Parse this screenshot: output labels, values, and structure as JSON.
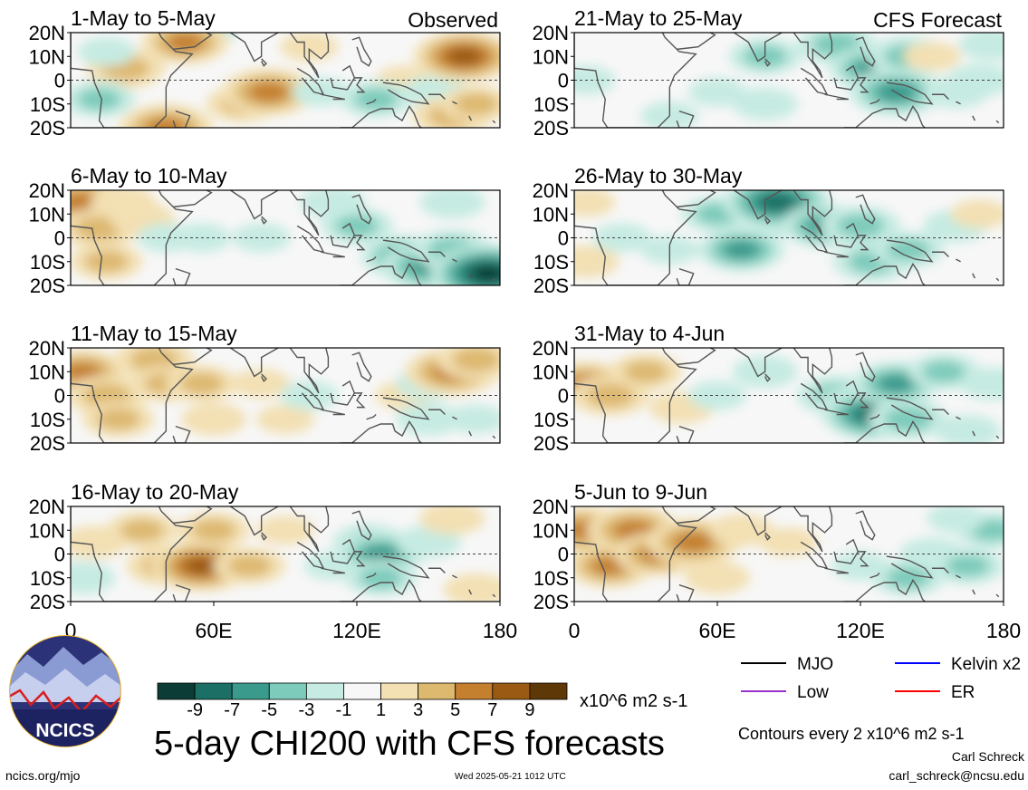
{
  "chart_data": {
    "type": "heatmap",
    "variable_title": "5-day CHI200 with CFS forecasts",
    "units": "x10^6 m2 s-1",
    "contour_note": "Contours every 2 x10^6 m2 s-1",
    "x_ticks": [
      "0",
      "60E",
      "120E",
      "180"
    ],
    "y_ticks": [
      "20N",
      "10N",
      "0",
      "10S",
      "20S"
    ],
    "xlim": [
      0,
      180
    ],
    "ylim": [
      -20,
      20
    ],
    "colorbar": {
      "levels": [
        -9,
        -7,
        -5,
        -3,
        -1,
        1,
        3,
        5,
        7,
        9
      ],
      "colors": [
        "#0b3d36",
        "#1b6f65",
        "#3a9a8c",
        "#7dcbbb",
        "#c6ebe2",
        "#f7f7f7",
        "#f3e0b3",
        "#ddb86f",
        "#c47f2f",
        "#9a5a13",
        "#5e3806"
      ]
    },
    "legend": [
      {
        "label": "MJO",
        "color": "#000000"
      },
      {
        "label": "Kelvin x2",
        "color": "#0000ff"
      },
      {
        "label": "Low",
        "color": "#9932cc"
      },
      {
        "label": "ER",
        "color": "#ff0000"
      }
    ],
    "panels": [
      {
        "title": "1-May to 5-May",
        "tag": "Observed",
        "column": "left",
        "blobs": [
          [
            57,
            20,
            -1
          ],
          [
            23,
            5,
            4
          ],
          [
            48,
            16,
            5
          ],
          [
            12,
            -8,
            -3
          ],
          [
            40,
            -20,
            6
          ],
          [
            72,
            -10,
            3
          ],
          [
            83,
            -5,
            6
          ],
          [
            105,
            -5,
            -1
          ],
          [
            140,
            0,
            1
          ],
          [
            153,
            -5,
            -2
          ],
          [
            128,
            -8,
            -3
          ],
          [
            165,
            10,
            7
          ],
          [
            160,
            -15,
            4
          ],
          [
            170,
            -10,
            3
          ],
          [
            100,
            14,
            1
          ],
          [
            15,
            12,
            -1
          ]
        ]
      },
      {
        "title": "6-May to 10-May",
        "tag": "",
        "column": "left",
        "blobs": [
          [
            5,
            15,
            6
          ],
          [
            12,
            4,
            4
          ],
          [
            15,
            -10,
            3
          ],
          [
            22,
            15,
            2
          ],
          [
            30,
            8,
            2
          ],
          [
            40,
            0,
            -1
          ],
          [
            55,
            0,
            -1
          ],
          [
            80,
            0,
            -1
          ],
          [
            120,
            5,
            -3
          ],
          [
            140,
            -8,
            -5
          ],
          [
            150,
            -12,
            -6
          ],
          [
            160,
            -5,
            -4
          ],
          [
            175,
            -15,
            -9
          ],
          [
            160,
            15,
            -2
          ],
          [
            110,
            15,
            -2
          ]
        ]
      },
      {
        "title": "11-May to 15-May",
        "tag": "",
        "column": "left",
        "blobs": [
          [
            5,
            10,
            5
          ],
          [
            15,
            0,
            4
          ],
          [
            20,
            -10,
            3
          ],
          [
            35,
            15,
            4
          ],
          [
            40,
            5,
            3
          ],
          [
            55,
            5,
            3
          ],
          [
            60,
            -10,
            2
          ],
          [
            80,
            5,
            1
          ],
          [
            90,
            -10,
            1
          ],
          [
            100,
            0,
            -1
          ],
          [
            140,
            0,
            1
          ],
          [
            150,
            -10,
            -2
          ],
          [
            150,
            5,
            -2
          ],
          [
            160,
            10,
            6
          ],
          [
            170,
            15,
            4
          ],
          [
            170,
            -10,
            -1
          ]
        ]
      },
      {
        "title": "16-May to 20-May",
        "tag": "",
        "column": "left",
        "blobs": [
          [
            5,
            -10,
            -2
          ],
          [
            10,
            5,
            2
          ],
          [
            30,
            10,
            3
          ],
          [
            40,
            -5,
            4
          ],
          [
            55,
            -5,
            7
          ],
          [
            60,
            10,
            3
          ],
          [
            75,
            -5,
            3
          ],
          [
            90,
            10,
            1
          ],
          [
            110,
            -5,
            -1
          ],
          [
            125,
            5,
            -3
          ],
          [
            130,
            0,
            -5
          ],
          [
            130,
            -10,
            -3
          ],
          [
            150,
            5,
            -2
          ],
          [
            170,
            -15,
            2
          ],
          [
            160,
            15,
            2
          ]
        ]
      },
      {
        "title": "21-May to 25-May",
        "tag": "CFS Forecast",
        "column": "right",
        "blobs": [
          [
            40,
            -15,
            -1
          ],
          [
            80,
            10,
            -3
          ],
          [
            110,
            15,
            -4
          ],
          [
            125,
            5,
            -5
          ],
          [
            135,
            -5,
            -6
          ],
          [
            140,
            10,
            -4
          ],
          [
            160,
            -5,
            -2
          ],
          [
            170,
            0,
            -2
          ],
          [
            5,
            0,
            -1
          ],
          [
            60,
            -5,
            -1
          ],
          [
            150,
            10,
            1
          ],
          [
            175,
            15,
            -2
          ],
          [
            80,
            -10,
            -2
          ]
        ]
      },
      {
        "title": "26-May to 30-May",
        "tag": "",
        "column": "right",
        "blobs": [
          [
            5,
            -10,
            2
          ],
          [
            20,
            0,
            -1
          ],
          [
            40,
            -5,
            -1
          ],
          [
            60,
            10,
            -3
          ],
          [
            70,
            -5,
            -5
          ],
          [
            90,
            10,
            -6
          ],
          [
            85,
            15,
            -8
          ],
          [
            105,
            5,
            -5
          ],
          [
            120,
            5,
            -4
          ],
          [
            125,
            -10,
            -4
          ],
          [
            140,
            -5,
            -3
          ],
          [
            160,
            5,
            -2
          ],
          [
            170,
            10,
            1
          ],
          [
            5,
            15,
            1
          ]
        ]
      },
      {
        "title": "31-May to 4-Jun",
        "tag": "",
        "column": "right",
        "blobs": [
          [
            5,
            5,
            5
          ],
          [
            15,
            0,
            4
          ],
          [
            30,
            10,
            3
          ],
          [
            45,
            -5,
            2
          ],
          [
            60,
            0,
            -1
          ],
          [
            80,
            10,
            -2
          ],
          [
            110,
            0,
            -4
          ],
          [
            120,
            -5,
            -5
          ],
          [
            125,
            -8,
            -7
          ],
          [
            135,
            5,
            -5
          ],
          [
            140,
            -10,
            -4
          ],
          [
            155,
            10,
            -3
          ],
          [
            165,
            -15,
            -2
          ],
          [
            175,
            5,
            -2
          ]
        ]
      },
      {
        "title": "5-Jun to 9-Jun",
        "tag": "",
        "column": "right",
        "blobs": [
          [
            5,
            10,
            6
          ],
          [
            15,
            -5,
            5
          ],
          [
            25,
            10,
            6
          ],
          [
            35,
            0,
            5
          ],
          [
            50,
            5,
            6
          ],
          [
            60,
            -10,
            2
          ],
          [
            70,
            10,
            2
          ],
          [
            90,
            5,
            1
          ],
          [
            120,
            -5,
            -1
          ],
          [
            140,
            -10,
            -3
          ],
          [
            150,
            0,
            -2
          ],
          [
            165,
            -5,
            -3
          ],
          [
            175,
            10,
            -3
          ],
          [
            160,
            15,
            -1
          ]
        ]
      }
    ]
  },
  "footer": {
    "logo_text": "NCICS",
    "url": "ncics.org/mjo",
    "timestamp": "Wed 2025-05-21 1012 UTC",
    "author": "Carl Schreck",
    "email": "carl_schreck@ncsu.edu"
  }
}
